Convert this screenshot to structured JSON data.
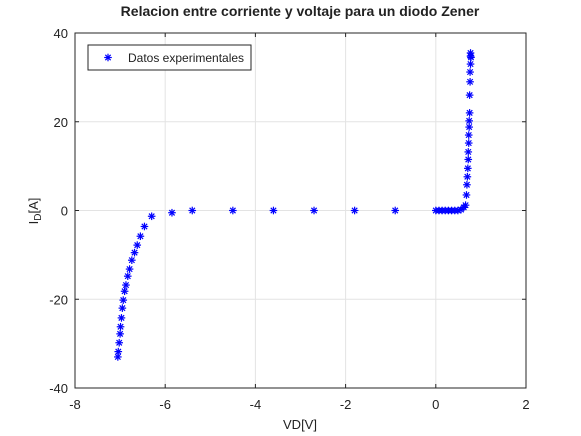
{
  "chart_data": {
    "type": "scatter",
    "title": "Relacion entre corriente y voltaje para un diodo Zener",
    "xlabel": "VD[V]",
    "ylabel_base": "I",
    "ylabel_sub": "D",
    "ylabel_unit": "[A]",
    "xlim": [
      -8,
      2
    ],
    "ylim": [
      -40,
      40
    ],
    "xticks": [
      -8,
      -6,
      -4,
      -2,
      0,
      2
    ],
    "yticks": [
      -40,
      -20,
      0,
      20,
      40
    ],
    "xtick_labels": [
      "-8",
      "-6",
      "-4",
      "-2",
      "0",
      "2"
    ],
    "ytick_labels": [
      "-40",
      "-20",
      "0",
      "20",
      "40"
    ],
    "grid": true,
    "legend_position": "top-left",
    "series": [
      {
        "name": "Datos experimentales",
        "color": "#0000ff",
        "marker": "asterisk",
        "x": [
          -7.05,
          -7.04,
          -7.02,
          -7.0,
          -6.99,
          -6.97,
          -6.95,
          -6.93,
          -6.9,
          -6.87,
          -6.83,
          -6.79,
          -6.74,
          -6.68,
          -6.62,
          -6.55,
          -6.46,
          -6.3,
          -5.85,
          -5.4,
          -4.5,
          -3.6,
          -2.7,
          -1.8,
          -0.9,
          0.0,
          0.07,
          0.14,
          0.21,
          0.28,
          0.35,
          0.42,
          0.49,
          0.56,
          0.62,
          0.66,
          0.68,
          0.69,
          0.7,
          0.71,
          0.72,
          0.72,
          0.73,
          0.73,
          0.74,
          0.74,
          0.75,
          0.75,
          0.76,
          0.76,
          0.77,
          0.77,
          0.77,
          0.78
        ],
        "y": [
          -33,
          -31.8,
          -29.8,
          -27.8,
          -26.2,
          -24.2,
          -22,
          -20.2,
          -18.2,
          -16.8,
          -14.8,
          -13.2,
          -11.2,
          -9.5,
          -7.8,
          -5.8,
          -3.6,
          -1.3,
          -0.5,
          0,
          0,
          0,
          0,
          0,
          0,
          0,
          0,
          0,
          0,
          0,
          0,
          0,
          0,
          0.2,
          0.7,
          1.2,
          3.5,
          5.8,
          7.6,
          9.5,
          11.5,
          13.2,
          15.2,
          17,
          18.8,
          20.2,
          22,
          26,
          29,
          31.2,
          33,
          34.8,
          35.5,
          34.5
        ]
      }
    ]
  }
}
